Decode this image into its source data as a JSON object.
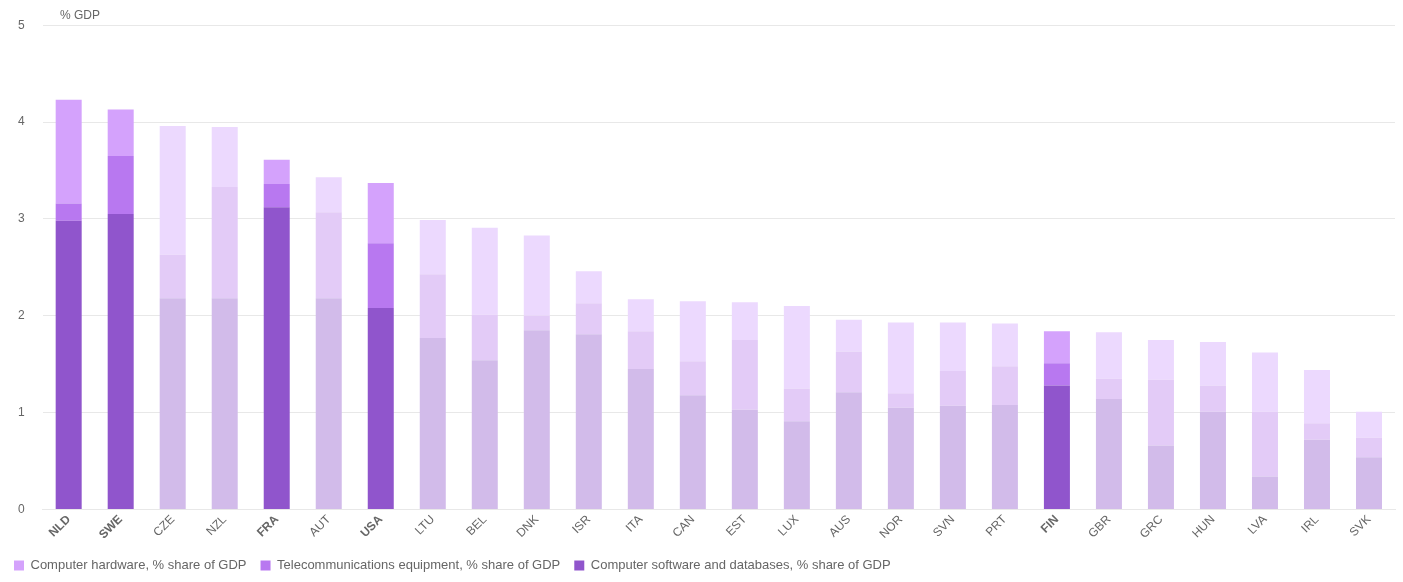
{
  "chart_data": {
    "type": "bar",
    "stacked": true,
    "ylabel": "% GDP",
    "ylim": [
      0,
      5
    ],
    "yticks": [
      0,
      1,
      2,
      3,
      4,
      5
    ],
    "grid": "y",
    "legend": "bottom left",
    "categories": [
      "NLD",
      "SWE",
      "CZE",
      "NZL",
      "FRA",
      "AUT",
      "USA",
      "LTU",
      "BEL",
      "DNK",
      "ISR",
      "ITA",
      "CAN",
      "EST",
      "LUX",
      "AUS",
      "NOR",
      "SVN",
      "PRT",
      "FIN",
      "GBR",
      "GRC",
      "HUN",
      "LVA",
      "IRL",
      "SVK"
    ],
    "series": [
      {
        "name": "Computer software and databases, % share of GDP",
        "color": "#9055cc",
        "colors": [
          "#9055cc",
          "#9055cc",
          "#d2bbea",
          "#d2bbea",
          "#9055cc",
          "#d2bbea",
          "#9055cc",
          "#d2bbea",
          "#d2bbea",
          "#d2bbea",
          "#d2bbea",
          "#d2bbea",
          "#d2bbea",
          "#d2bbea",
          "#d2bbea",
          "#d2bbea",
          "#d2bbea",
          "#d2bbea",
          "#d2bbea",
          "#9055cc",
          "#d2bbea",
          "#d2bbea",
          "#d2bbea",
          "#d2bbea",
          "#d2bbea",
          "#d2bbea"
        ],
        "values": [
          2.98,
          3.05,
          2.18,
          2.18,
          3.12,
          2.18,
          2.08,
          1.77,
          1.54,
          1.85,
          1.81,
          1.45,
          1.18,
          1.03,
          0.91,
          1.21,
          1.05,
          1.07,
          1.08,
          1.28,
          1.14,
          0.66,
          1.01,
          0.34,
          0.72,
          0.54
        ]
      },
      {
        "name": "Telecommunications equipment, % share of GDP",
        "color": "#b878f0",
        "colors": [
          "#b878f0",
          "#b878f0",
          "#e3cbf7",
          "#e3cbf7",
          "#b878f0",
          "#e3cbf7",
          "#b878f0",
          "#e3cbf7",
          "#e3cbf7",
          "#e3cbf7",
          "#e3cbf7",
          "#e3cbf7",
          "#e3cbf7",
          "#e3cbf7",
          "#e3cbf7",
          "#e3cbf7",
          "#e3cbf7",
          "#e3cbf7",
          "#e3cbf7",
          "#b878f0",
          "#e3cbf7",
          "#e3cbf7",
          "#e3cbf7",
          "#e3cbf7",
          "#e3cbf7",
          "#e3cbf7"
        ],
        "values": [
          0.18,
          0.6,
          0.45,
          1.15,
          0.24,
          0.89,
          0.67,
          0.66,
          0.47,
          0.15,
          0.32,
          0.39,
          0.35,
          0.72,
          0.34,
          0.42,
          0.15,
          0.36,
          0.4,
          0.23,
          0.21,
          0.68,
          0.27,
          0.67,
          0.17,
          0.2
        ]
      },
      {
        "name": "Computer hardware, % share of GDP",
        "color": "#d4a2fc",
        "colors": [
          "#d4a2fc",
          "#d4a2fc",
          "#ecd9fe",
          "#ecd9fe",
          "#d4a2fc",
          "#ecd9fe",
          "#d4a2fc",
          "#ecd9fe",
          "#ecd9fe",
          "#ecd9fe",
          "#ecd9fe",
          "#ecd9fe",
          "#ecd9fe",
          "#ecd9fe",
          "#ecd9fe",
          "#ecd9fe",
          "#ecd9fe",
          "#ecd9fe",
          "#ecd9fe",
          "#d4a2fc",
          "#ecd9fe",
          "#ecd9fe",
          "#ecd9fe",
          "#ecd9fe",
          "#ecd9fe",
          "#ecd9fe"
        ],
        "values": [
          1.07,
          0.48,
          1.33,
          0.62,
          0.25,
          0.36,
          0.62,
          0.56,
          0.9,
          0.83,
          0.33,
          0.33,
          0.62,
          0.39,
          0.85,
          0.33,
          0.73,
          0.5,
          0.44,
          0.33,
          0.48,
          0.41,
          0.45,
          0.61,
          0.55,
          0.27
        ]
      }
    ]
  }
}
